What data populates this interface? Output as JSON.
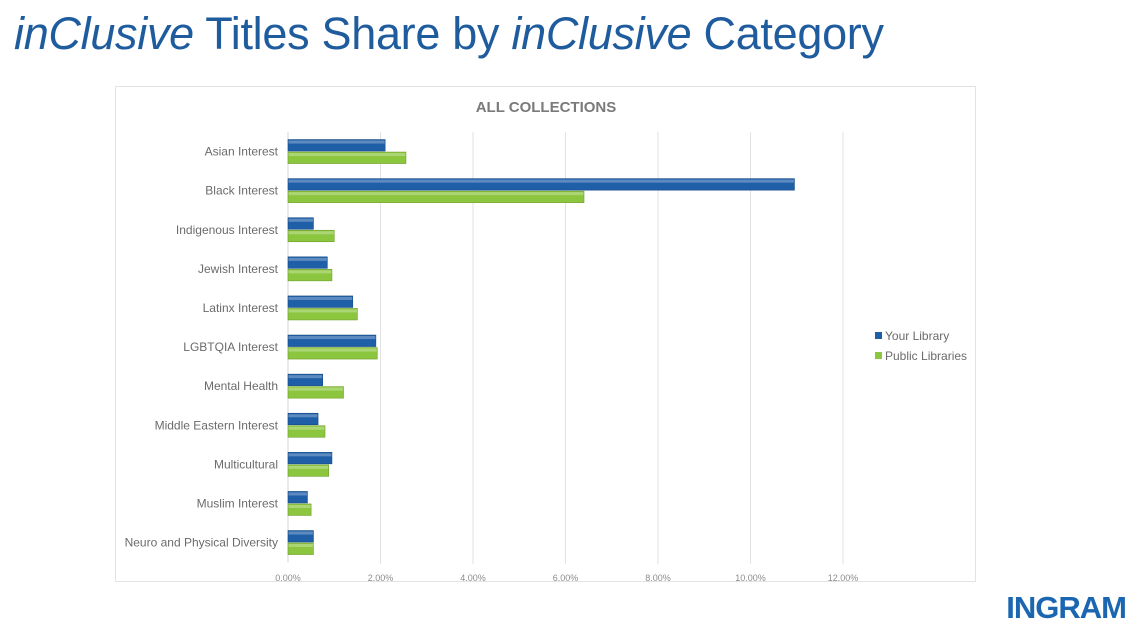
{
  "slide": {
    "title_part1": "inClusive",
    "title_part2": " Titles Share by ",
    "title_part3": "inClusive",
    "title_part4": " Category",
    "logo": "INGRAM"
  },
  "colors": {
    "your_library": "#1f5fa8",
    "public_libraries": "#8cc63f",
    "title": "#1f5c9e"
  },
  "chart_data": {
    "type": "bar",
    "orientation": "horizontal",
    "title": "ALL COLLECTIONS",
    "categories": [
      "Asian Interest",
      "Black Interest",
      "Indigenous Interest",
      "Jewish Interest",
      "Latinx Interest",
      "LGBTQIA Interest",
      "Mental Health",
      "Middle Eastern Interest",
      "Multicultural",
      "Muslim Interest",
      "Neuro and Physical Diversity"
    ],
    "series": [
      {
        "name": "Your Library",
        "color": "#1f5fa8",
        "values": [
          2.1,
          10.95,
          0.55,
          0.85,
          1.4,
          1.9,
          0.75,
          0.65,
          0.95,
          0.42,
          0.55
        ]
      },
      {
        "name": "Public Libraries",
        "color": "#8cc63f",
        "values": [
          2.55,
          6.4,
          1.0,
          0.95,
          1.5,
          1.93,
          1.2,
          0.8,
          0.88,
          0.5,
          0.55
        ]
      }
    ],
    "xlim": [
      0,
      12
    ],
    "xticks": [
      0,
      2,
      4,
      6,
      8,
      10,
      12
    ],
    "xtick_labels": [
      "0.00%",
      "2.00%",
      "4.00%",
      "6.00%",
      "8.00%",
      "10.00%",
      "12.00%"
    ],
    "xlabel": "",
    "ylabel": "",
    "grid": true,
    "legend_position": "right"
  }
}
